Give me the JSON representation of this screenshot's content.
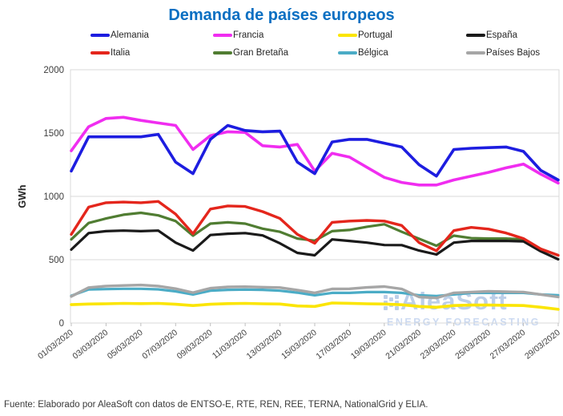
{
  "title": "Demanda de países europeos",
  "footer": "Fuente: Elaborado por AleaSoft con datos de ENTSO-E, RTE, REN, REE, TERNA, NationalGrid y ELIA.",
  "watermark": {
    "name": "AleaSoft",
    "tagline": "ENERGY FORECASTING",
    "color": "#bccfe9"
  },
  "y_axis": {
    "label": "GWh",
    "tick_values": [
      2000,
      1500,
      1000,
      500,
      0
    ]
  },
  "legend": {
    "rows": [
      [
        "Alemania",
        "Francia",
        "Portugal",
        "España"
      ],
      [
        "Italia",
        "Gran Bretaña",
        "Bélgica",
        "Países Bajos"
      ]
    ]
  },
  "chart_data": {
    "type": "line",
    "title": "Demanda de países europeos",
    "ylabel": "GWh",
    "ylim": [
      0,
      2000
    ],
    "grid": true,
    "legend_position": "top",
    "x_tick_step": 2,
    "x": [
      "01/03/2020",
      "02/03/2020",
      "03/03/2020",
      "04/03/2020",
      "05/03/2020",
      "06/03/2020",
      "07/03/2020",
      "08/03/2020",
      "09/03/2020",
      "10/03/2020",
      "11/03/2020",
      "12/03/2020",
      "13/03/2020",
      "14/03/2020",
      "15/03/2020",
      "16/03/2020",
      "17/03/2020",
      "18/03/2020",
      "19/03/2020",
      "20/03/2020",
      "21/03/2020",
      "22/03/2020",
      "23/03/2020",
      "24/03/2020",
      "25/03/2020",
      "26/03/2020",
      "27/03/2020",
      "28/03/2020",
      "29/03/2020"
    ],
    "series": [
      {
        "name": "Portugal",
        "color": "#fbe503",
        "width": 3.6,
        "values": [
          145,
          150,
          152,
          155,
          153,
          155,
          148,
          138,
          148,
          153,
          155,
          152,
          150,
          135,
          131,
          158,
          156,
          152,
          150,
          144,
          131,
          125,
          138,
          142,
          142,
          140,
          138,
          125,
          108
        ]
      },
      {
        "name": "Bélgica",
        "color": "#4bacc6",
        "width": 3.2,
        "values": [
          215,
          265,
          268,
          270,
          270,
          266,
          250,
          225,
          255,
          262,
          264,
          262,
          255,
          240,
          219,
          238,
          238,
          244,
          244,
          238,
          219,
          213,
          225,
          238,
          238,
          238,
          238,
          225,
          219
        ]
      },
      {
        "name": "Países Bajos",
        "color": "#a6a6a6",
        "width": 3.4,
        "values": [
          210,
          280,
          292,
          296,
          300,
          292,
          271,
          240,
          275,
          285,
          287,
          283,
          280,
          260,
          238,
          269,
          270,
          281,
          288,
          269,
          206,
          198,
          238,
          244,
          250,
          247,
          244,
          225,
          206
        ]
      },
      {
        "name": "Gran Bretaña",
        "color": "#507d32",
        "width": 3.2,
        "values": [
          660,
          790,
          825,
          855,
          870,
          850,
          805,
          690,
          785,
          795,
          785,
          745,
          720,
          667,
          650,
          725,
          735,
          760,
          780,
          720,
          665,
          610,
          690,
          670,
          667,
          667,
          660,
          585,
          535
        ]
      },
      {
        "name": "España",
        "color": "#1a1a1a",
        "width": 3.2,
        "values": [
          580,
          710,
          725,
          730,
          725,
          730,
          635,
          572,
          695,
          705,
          710,
          692,
          629,
          554,
          535,
          660,
          648,
          635,
          616,
          615,
          572,
          541,
          635,
          648,
          648,
          648,
          645,
          566,
          503
        ]
      },
      {
        "name": "Italia",
        "color": "#e4261c",
        "width": 3.4,
        "values": [
          700,
          915,
          950,
          955,
          950,
          960,
          860,
          705,
          900,
          925,
          920,
          880,
          825,
          700,
          630,
          795,
          805,
          810,
          805,
          770,
          635,
          570,
          730,
          755,
          742,
          711,
          667,
          585,
          535
        ]
      },
      {
        "name": "Francia",
        "color": "#f02df0",
        "width": 3.6,
        "values": [
          1360,
          1550,
          1615,
          1625,
          1600,
          1580,
          1560,
          1370,
          1480,
          1510,
          1505,
          1400,
          1390,
          1410,
          1200,
          1340,
          1310,
          1230,
          1150,
          1110,
          1090,
          1090,
          1130,
          1160,
          1190,
          1225,
          1255,
          1175,
          1105
        ]
      },
      {
        "name": "Alemania",
        "color": "#1d1de0",
        "width": 3.6,
        "values": [
          1200,
          1470,
          1470,
          1470,
          1470,
          1490,
          1270,
          1180,
          1450,
          1560,
          1520,
          1510,
          1515,
          1270,
          1180,
          1430,
          1450,
          1450,
          1420,
          1390,
          1250,
          1160,
          1370,
          1380,
          1385,
          1390,
          1355,
          1205,
          1130
        ]
      }
    ]
  }
}
